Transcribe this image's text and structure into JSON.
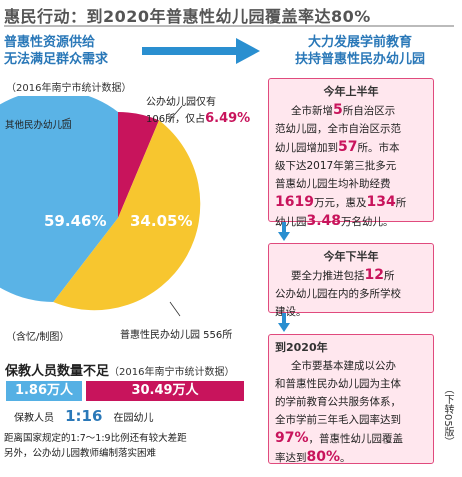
{
  "headline": "惠民行动：到2020年普惠性幼儿园覆盖率达80%",
  "left_heading": [
    "普惠性资源供给",
    "无法满足群众需求"
  ],
  "right_heading": [
    "大力发展学前教育",
    "扶持普惠性民办幼儿园"
  ],
  "source_note": "（2016年南宁市统计数据）",
  "pie": {
    "slices": [
      {
        "label": "其他民办幼儿园",
        "pct": "59.46%",
        "value": 59.46,
        "color": "#5ab3e6"
      },
      {
        "label": "公办幼儿园",
        "pct": "6.49%",
        "value": 6.49,
        "color": "#c8145c"
      },
      {
        "label": "普惠性民办幼儿园",
        "pct": "34.05%",
        "value": 34.05,
        "color": "#f7c62f"
      }
    ],
    "public_note_1": "公办幼儿园仅有",
    "public_note_2": "106所，仅占",
    "public_pct": "6.49%",
    "other_label": "其他民办幼儿园",
    "puhui_label": "普惠性民办幼儿园 556所",
    "credit": "（含忆/制图）"
  },
  "staff": {
    "title": "保教人员数量不足",
    "source": "（2016年南宁市统计数据）",
    "left_value": "1.86万人",
    "right_value": "30.49万人",
    "ratio_left": "保教人员",
    "ratio": "1:16",
    "ratio_right": "在园幼儿",
    "footnote_1": "距离国家规定的1:7～1:9比例还有较大差距",
    "footnote_2": "另外，公办幼儿园教师编制落实困难"
  },
  "boxes": {
    "b1_title": "今年上半年",
    "b1_l1": "全市新增",
    "b1_n1": "5",
    "b1_l1b": "所自治区示",
    "b1_l2": "范幼儿园，全市自治区示范",
    "b1_l3a": "幼儿园增加到",
    "b1_n2": "57",
    "b1_l3b": "所。市本",
    "b1_l4": "级下达2017年第三批多元",
    "b1_l5": "普惠幼儿园生均补助经费",
    "b1_n3": "1619",
    "b1_l6a": "万元，惠及",
    "b1_n4": "134",
    "b1_l6b": "所",
    "b1_l7a": "幼儿园",
    "b1_n5": "3.48",
    "b1_l7b": "万名幼儿。",
    "b2_title": "今年下半年",
    "b2_l1a": "要全力推进包括",
    "b2_n1": "12",
    "b2_l1b": "所",
    "b2_l2": "公办幼儿园在内的多所学校",
    "b2_l3": "建设。",
    "b3_title": "到2020年",
    "b3_l1": "全市要基本建成以公办",
    "b3_l2": "和普惠性民办幼儿园为主体",
    "b3_l3": "的学前教育公共服务体系，",
    "b3_l4": "全市学前三年毛入园率达到",
    "b3_n1": "97%",
    "b3_l5b": "，普惠性幼儿园覆盖",
    "b3_l6a": "率达到",
    "b3_n2": "80%",
    "b3_l6b": "。"
  },
  "side_note": "（下转05版）"
}
